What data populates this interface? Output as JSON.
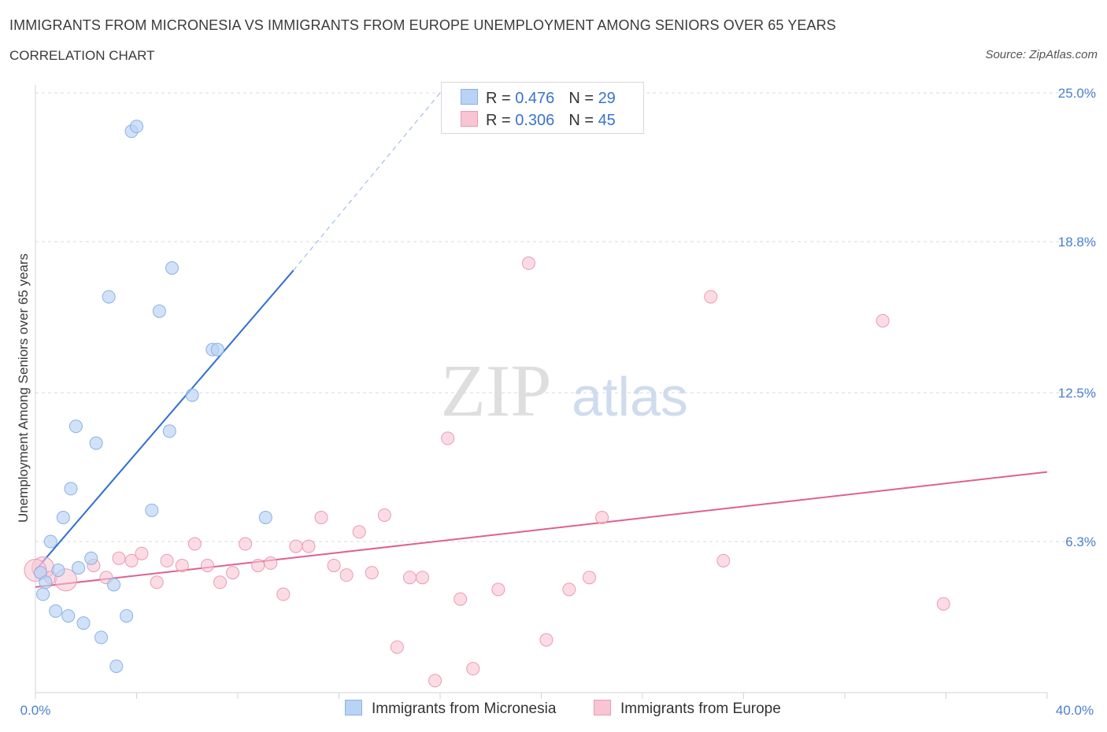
{
  "header": {
    "title": "IMMIGRANTS FROM MICRONESIA VS IMMIGRANTS FROM EUROPE UNEMPLOYMENT AMONG SENIORS OVER 65 YEARS",
    "subtitle": "CORRELATION CHART",
    "source": "Source: ZipAtlas.com"
  },
  "watermark": {
    "zip": "ZIP",
    "atlas": "atlas"
  },
  "legend": {
    "series": [
      {
        "r_label": "R =",
        "r_value": "0.476",
        "n_label": "N =",
        "n_value": "29"
      },
      {
        "r_label": "R =",
        "r_value": "0.306",
        "n_label": "N =",
        "n_value": "45"
      }
    ]
  },
  "bottom_legend": {
    "micronesia": "Immigrants from Micronesia",
    "europe": "Immigrants from Europe"
  },
  "colors": {
    "micronesia_fill": "#b8d3f5",
    "micronesia_stroke": "#8ab1e3",
    "micronesia_line": "#2f6fd1",
    "europe_fill": "#f8c5d4",
    "europe_stroke": "#ec9ab3",
    "europe_line": "#e0608f",
    "grid": "#d6dbe3",
    "tick_text": "#4a7fcf"
  },
  "chart_data": {
    "type": "scatter",
    "title": "IMMIGRANTS FROM MICRONESIA VS IMMIGRANTS FROM EUROPE UNEMPLOYMENT AMONG SENIORS OVER 65 YEARS",
    "xlabel": "",
    "ylabel": "Unemployment Among Seniors over 65 years",
    "xlim": [
      0,
      40
    ],
    "ylim": [
      0,
      25
    ],
    "x_tick_labels": [
      "0.0%",
      "40.0%"
    ],
    "y_ticks": [
      6.3,
      12.5,
      18.8,
      25.0
    ],
    "y_tick_labels": [
      "6.3%",
      "12.5%",
      "18.8%",
      "25.0%"
    ],
    "series": [
      {
        "name": "Immigrants from Micronesia",
        "r": 0.476,
        "n": 29,
        "trend": {
          "x0": 0,
          "y0": 5.1,
          "x1": 10.2,
          "y1": 17.6,
          "dash_to_x": 16,
          "dash_to_y": 25
        },
        "points": [
          {
            "x": 0.2,
            "y": 5.0
          },
          {
            "x": 0.3,
            "y": 4.1
          },
          {
            "x": 0.4,
            "y": 4.6
          },
          {
            "x": 0.6,
            "y": 6.3
          },
          {
            "x": 0.8,
            "y": 3.4
          },
          {
            "x": 0.9,
            "y": 5.1
          },
          {
            "x": 1.1,
            "y": 7.3
          },
          {
            "x": 1.3,
            "y": 3.2
          },
          {
            "x": 1.4,
            "y": 8.5
          },
          {
            "x": 1.6,
            "y": 11.1
          },
          {
            "x": 1.7,
            "y": 5.2
          },
          {
            "x": 1.9,
            "y": 2.9
          },
          {
            "x": 2.2,
            "y": 5.6
          },
          {
            "x": 2.4,
            "y": 10.4
          },
          {
            "x": 2.6,
            "y": 2.3
          },
          {
            "x": 2.9,
            "y": 16.5
          },
          {
            "x": 3.1,
            "y": 4.5
          },
          {
            "x": 3.2,
            "y": 1.1
          },
          {
            "x": 3.6,
            "y": 3.2
          },
          {
            "x": 3.8,
            "y": 23.4
          },
          {
            "x": 4.0,
            "y": 23.6
          },
          {
            "x": 4.6,
            "y": 7.6
          },
          {
            "x": 4.9,
            "y": 15.9
          },
          {
            "x": 5.3,
            "y": 10.9
          },
          {
            "x": 5.4,
            "y": 17.7
          },
          {
            "x": 6.2,
            "y": 12.4
          },
          {
            "x": 7.0,
            "y": 14.3
          },
          {
            "x": 7.2,
            "y": 14.3
          },
          {
            "x": 9.1,
            "y": 7.3
          }
        ]
      },
      {
        "name": "Immigrants from Europe",
        "r": 0.306,
        "n": 45,
        "trend": {
          "x0": 0,
          "y0": 4.4,
          "x1": 40,
          "y1": 9.2
        },
        "points": [
          {
            "x": 0.3,
            "y": 5.2
          },
          {
            "x": 0.6,
            "y": 4.8
          },
          {
            "x": 1.2,
            "y": 4.7
          },
          {
            "x": 2.3,
            "y": 5.3
          },
          {
            "x": 2.8,
            "y": 4.8
          },
          {
            "x": 3.3,
            "y": 5.6
          },
          {
            "x": 3.8,
            "y": 5.5
          },
          {
            "x": 4.2,
            "y": 5.8
          },
          {
            "x": 4.8,
            "y": 4.6
          },
          {
            "x": 5.2,
            "y": 5.5
          },
          {
            "x": 5.8,
            "y": 5.3
          },
          {
            "x": 6.3,
            "y": 6.2
          },
          {
            "x": 6.8,
            "y": 5.3
          },
          {
            "x": 7.3,
            "y": 4.6
          },
          {
            "x": 7.8,
            "y": 5.0
          },
          {
            "x": 8.3,
            "y": 6.2
          },
          {
            "x": 8.8,
            "y": 5.3
          },
          {
            "x": 9.3,
            "y": 5.4
          },
          {
            "x": 9.8,
            "y": 4.1
          },
          {
            "x": 10.3,
            "y": 6.1
          },
          {
            "x": 10.8,
            "y": 6.1
          },
          {
            "x": 11.3,
            "y": 7.3
          },
          {
            "x": 11.8,
            "y": 5.3
          },
          {
            "x": 12.3,
            "y": 4.9
          },
          {
            "x": 12.8,
            "y": 6.7
          },
          {
            "x": 13.3,
            "y": 5.0
          },
          {
            "x": 13.8,
            "y": 7.4
          },
          {
            "x": 14.3,
            "y": 1.9
          },
          {
            "x": 14.8,
            "y": 4.8
          },
          {
            "x": 15.3,
            "y": 4.8
          },
          {
            "x": 15.8,
            "y": 0.5
          },
          {
            "x": 16.3,
            "y": 10.6
          },
          {
            "x": 16.8,
            "y": 3.9
          },
          {
            "x": 17.3,
            "y": 1.0
          },
          {
            "x": 18.3,
            "y": 4.3
          },
          {
            "x": 19.5,
            "y": 17.9
          },
          {
            "x": 20.2,
            "y": 2.2
          },
          {
            "x": 21.1,
            "y": 4.3
          },
          {
            "x": 21.9,
            "y": 4.8
          },
          {
            "x": 22.4,
            "y": 7.3
          },
          {
            "x": 26.7,
            "y": 16.5
          },
          {
            "x": 27.2,
            "y": 5.5
          },
          {
            "x": 33.5,
            "y": 15.5
          },
          {
            "x": 35.9,
            "y": 3.7
          },
          {
            "x": 0.0,
            "y": 5.1
          }
        ]
      }
    ]
  }
}
